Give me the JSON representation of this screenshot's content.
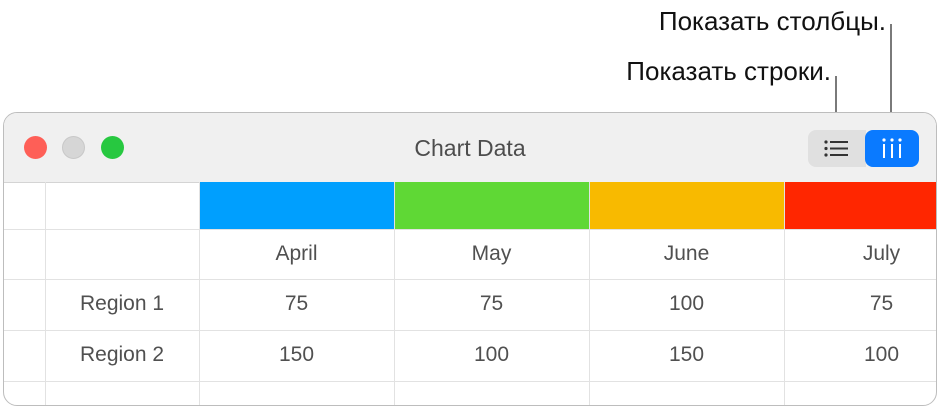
{
  "callouts": {
    "show_columns": "Показать столбцы.",
    "show_rows": "Показать строки."
  },
  "window": {
    "title": "Chart Data",
    "toolbar": {
      "rows_icon": "list-icon",
      "columns_icon": "columns-icon",
      "active": "columns",
      "accent": "#0a7aff"
    },
    "columns": [
      {
        "label": "April",
        "color": "#009ffe"
      },
      {
        "label": "May",
        "color": "#5fd835"
      },
      {
        "label": "June",
        "color": "#f8ba00"
      },
      {
        "label": "July",
        "color": "#ff2600"
      }
    ],
    "rows": [
      {
        "label": "Region 1",
        "values": [
          "75",
          "75",
          "100",
          "75"
        ]
      },
      {
        "label": "Region 2",
        "values": [
          "150",
          "100",
          "150",
          "100"
        ]
      }
    ]
  }
}
